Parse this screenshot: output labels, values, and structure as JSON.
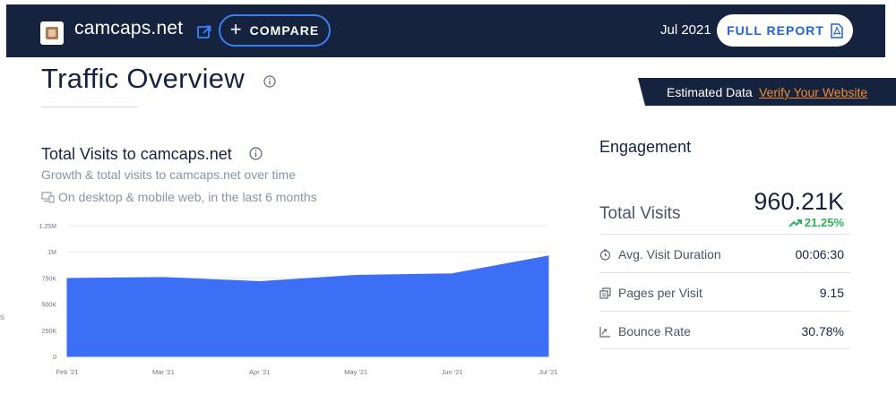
{
  "header": {
    "site_name": "camcaps.net",
    "compare_label": "COMPARE",
    "date": "Jul 2021",
    "report_label": "FULL REPORT",
    "icons": [
      "site-favicon",
      "external-link-icon",
      "plus-icon",
      "pdf-icon"
    ],
    "colors": {
      "bar_bg": "#16233f",
      "accent": "#3a7ff5"
    }
  },
  "page": {
    "title": "Traffic Overview",
    "estimated_label": "Estimated Data",
    "verify_link": "Verify Your Website"
  },
  "visits_card": {
    "title": "Total Visits to camcaps.net",
    "subtitle": "Growth & total visits to camcaps.net over time",
    "scope": "On desktop & mobile web, in the last 6 months"
  },
  "chart_data": {
    "type": "area",
    "x": [
      "Feb '21",
      "Mar '21",
      "Apr '21",
      "May '21",
      "Jun '21",
      "Jul '21"
    ],
    "series": [
      {
        "values": [
          745000,
          755000,
          715000,
          775000,
          790000,
          960210
        ]
      }
    ],
    "y_ticks": [
      "0",
      "250K",
      "500K",
      "750K",
      "1M",
      "1.25M"
    ],
    "ylim": [
      0,
      1250000
    ],
    "grid": true,
    "color": "#3d6ef6"
  },
  "engagement": {
    "title": "Engagement",
    "total_visits_label": "Total Visits",
    "total_visits_value": "960.21K",
    "total_visits_change": "21.25%",
    "change_color": "#2fb25b",
    "rows": [
      {
        "label": "Avg. Visit Duration",
        "value": "00:06:30",
        "icon": "clock-icon"
      },
      {
        "label": "Pages per Visit",
        "value": "9.15",
        "icon": "pages-icon"
      },
      {
        "label": "Bounce Rate",
        "value": "30.78%",
        "icon": "bounce-icon"
      }
    ]
  },
  "edge_fragment": "s"
}
